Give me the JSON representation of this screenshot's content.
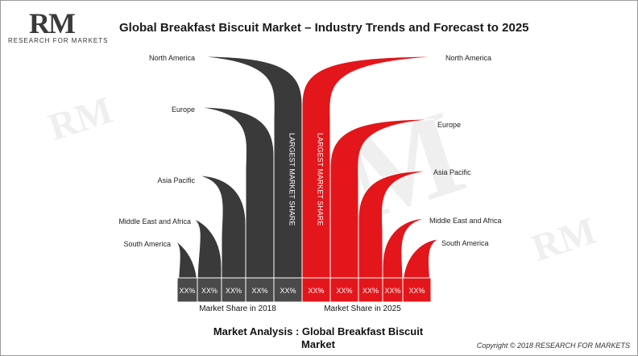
{
  "header": {
    "logo_text": "RM",
    "logo_subtext": "RESEARCH FOR MARKETS",
    "title": "Global Breakfast Biscuit Market – Industry Trends and Forecast to 2025"
  },
  "footer": {
    "title_line1": "Market Analysis : Global Breakfast Biscuit",
    "title_line2": "Market",
    "copyright": "Copyright © 2018 RESEARCH FOR MARKETS"
  },
  "colors": {
    "left": "#3a3a3a",
    "right": "#e3161b",
    "bar_left": "#4a4a4a",
    "bar_right": "#e3161b"
  },
  "chart_data": {
    "type": "bar",
    "title": "Global Breakfast Biscuit Market – Industry Trends and Forecast to 2025",
    "series": [
      {
        "name": "Market Share in 2018",
        "categories": [
          "South America",
          "Middle East and Africa",
          "Asia Pacific",
          "Europe",
          "North America"
        ],
        "values": [
          "XX%",
          "XX%",
          "XX%",
          "XX%",
          "XX%"
        ],
        "highlight_label": "LARGEST MARKET SHARE"
      },
      {
        "name": "Market Share in 2025",
        "categories": [
          "North America",
          "Europe",
          "Asia Pacific",
          "Middle East and Africa",
          "South America"
        ],
        "values": [
          "XX%",
          "XX%",
          "XX%",
          "XX%",
          "XX%"
        ],
        "highlight_label": "LARGEST MARKET SHARE"
      }
    ]
  }
}
